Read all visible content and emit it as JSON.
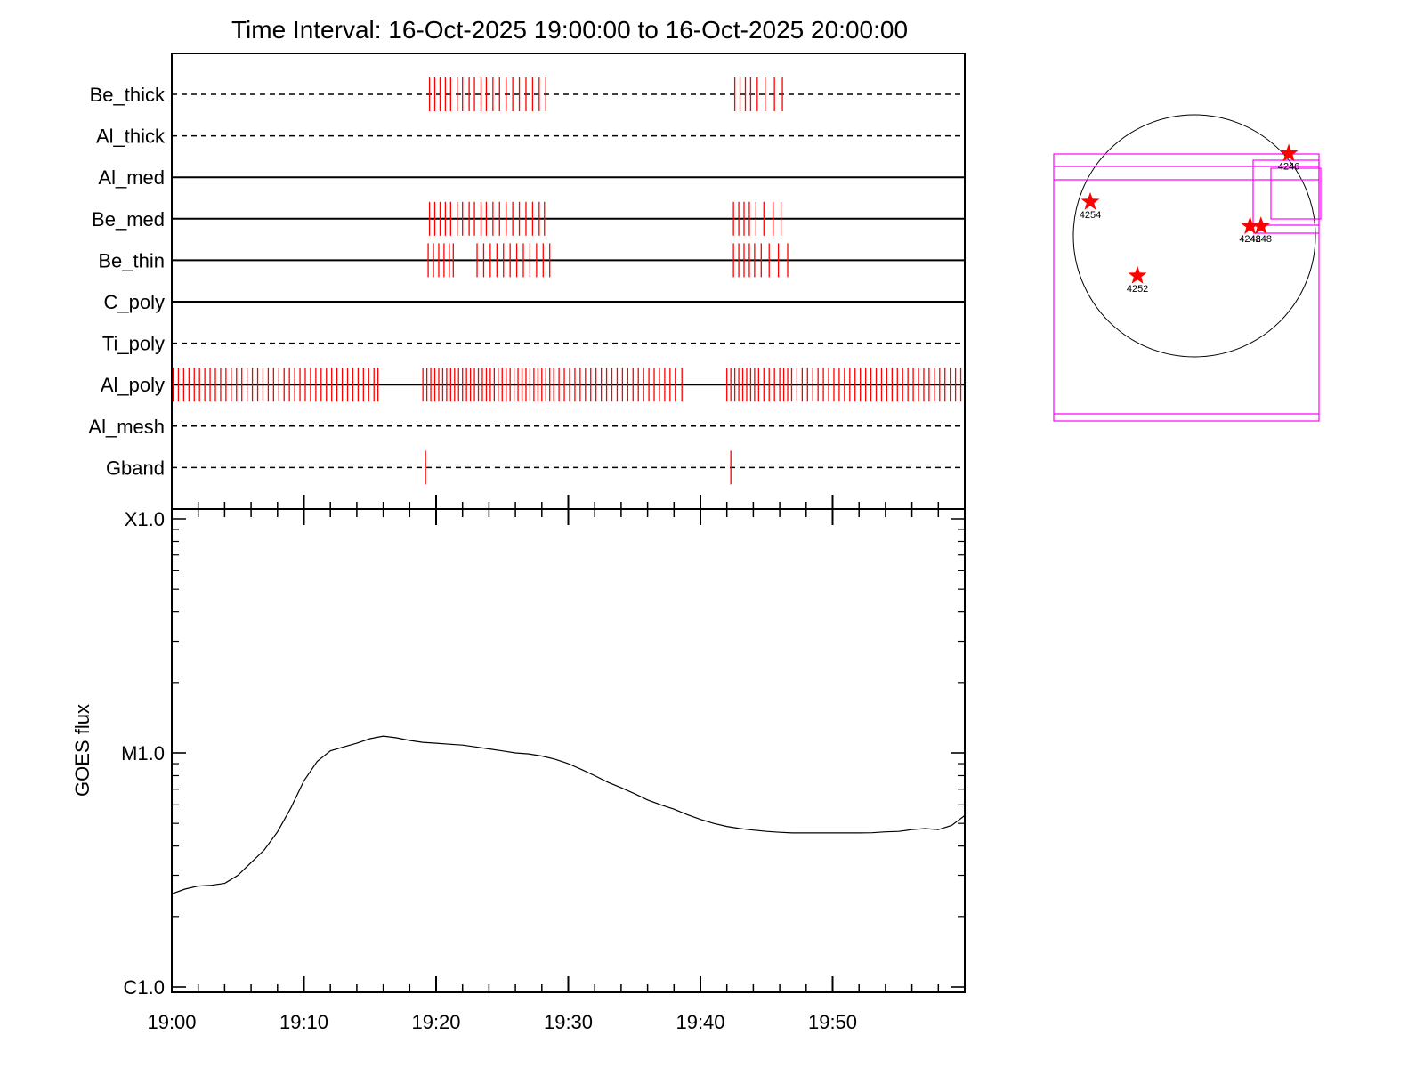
{
  "title": "Time Interval: 16-Oct-2025 19:00:00 to 16-Oct-2025 20:00:00",
  "colors": {
    "marks": "#ff0000",
    "boxes": "#ff00ff",
    "axes": "#000000"
  },
  "chart_data": [
    {
      "type": "timeline",
      "x_range_min": [
        0,
        60
      ],
      "channels": [
        {
          "name": "Be_thick",
          "line": "dashed",
          "events_min": [
            19.5,
            19.9,
            20.3,
            20.7,
            21.1,
            21.6,
            22.0,
            22.5,
            22.9,
            23.4,
            23.8,
            24.3,
            24.8,
            25.3,
            25.8,
            26.3,
            26.8,
            27.3,
            27.8,
            28.3,
            42.6,
            43.0,
            43.4,
            43.8,
            44.3,
            44.9,
            45.6,
            46.2
          ]
        },
        {
          "name": "Al_thick",
          "line": "dashed",
          "events_min": []
        },
        {
          "name": "Al_med",
          "line": "solid",
          "events_min": []
        },
        {
          "name": "Be_med",
          "line": "solid",
          "events_min": [
            19.5,
            19.9,
            20.3,
            20.7,
            21.1,
            21.6,
            22.0,
            22.5,
            22.9,
            23.4,
            23.8,
            24.3,
            24.8,
            25.3,
            25.8,
            26.3,
            26.8,
            27.3,
            27.8,
            28.2,
            42.5,
            42.9,
            43.3,
            43.7,
            44.2,
            44.8,
            45.5,
            46.1
          ]
        },
        {
          "name": "Be_thin",
          "line": "solid",
          "events_min": [
            19.4,
            19.8,
            20.2,
            20.6,
            21.0,
            21.3,
            23.1,
            23.6,
            24.1,
            24.6,
            25.1,
            25.6,
            26.1,
            26.6,
            27.1,
            27.6,
            28.1,
            28.6,
            42.5,
            42.9,
            43.3,
            43.7,
            44.1,
            44.6,
            45.2,
            45.9,
            46.6
          ]
        },
        {
          "name": "C_poly",
          "line": "solid",
          "events_min": []
        },
        {
          "name": "Ti_poly",
          "line": "dashed",
          "events_min": []
        },
        {
          "name": "Al_poly",
          "line": "solid",
          "events_min": [
            0.1,
            0.5,
            0.9,
            1.3,
            1.7,
            2.1,
            2.5,
            2.9,
            3.3,
            3.7,
            4.1,
            4.5,
            4.9,
            5.3,
            5.7,
            6.1,
            6.5,
            6.9,
            7.3,
            7.7,
            8.1,
            8.5,
            8.9,
            9.3,
            9.7,
            10.1,
            10.5,
            10.9,
            11.3,
            11.7,
            12.1,
            12.5,
            12.9,
            13.3,
            13.7,
            14.1,
            14.5,
            14.9,
            15.3,
            15.6,
            19.0,
            19.3,
            19.6,
            19.9,
            20.2,
            20.5,
            20.8,
            21.1,
            21.4,
            21.7,
            22.0,
            22.3,
            22.6,
            22.9,
            23.2,
            23.5,
            23.8,
            24.1,
            24.4,
            24.7,
            25.0,
            25.3,
            25.6,
            25.9,
            26.2,
            26.5,
            26.8,
            27.1,
            27.4,
            27.7,
            28.0,
            28.3,
            28.6,
            28.9,
            29.3,
            29.7,
            30.1,
            30.5,
            30.9,
            31.3,
            31.7,
            32.1,
            32.5,
            32.9,
            33.3,
            33.7,
            34.1,
            34.5,
            34.9,
            35.3,
            35.7,
            36.1,
            36.5,
            36.9,
            37.3,
            37.7,
            38.1,
            38.6,
            42.0,
            42.3,
            42.6,
            42.9,
            43.2,
            43.5,
            43.8,
            44.1,
            44.4,
            44.8,
            45.2,
            45.6,
            46.0,
            46.3,
            46.6,
            46.9,
            47.3,
            47.7,
            48.1,
            48.5,
            48.9,
            49.3,
            49.7,
            50.1,
            50.5,
            50.9,
            51.3,
            51.7,
            52.1,
            52.5,
            52.9,
            53.3,
            53.7,
            54.1,
            54.5,
            54.9,
            55.3,
            55.7,
            56.1,
            56.5,
            56.9,
            57.3,
            57.7,
            58.1,
            58.5,
            58.9,
            59.3,
            59.7
          ]
        },
        {
          "name": "Al_mesh",
          "line": "dashed",
          "events_min": []
        },
        {
          "name": "Gband",
          "line": "dashed",
          "events_min": [
            19.2,
            42.3
          ]
        }
      ]
    },
    {
      "type": "line",
      "ylabel": "GOES flux",
      "y_log": true,
      "ylim": [
        1e-06,
        0.0001
      ],
      "yticks": [
        {
          "label": "C1.0",
          "value": 1e-06
        },
        {
          "label": "M1.0",
          "value": 1e-05
        },
        {
          "label": "X1.0",
          "value": 0.0001
        }
      ],
      "x_range_min": [
        0,
        60
      ],
      "xticks": [
        {
          "label": "19:00",
          "min": 0
        },
        {
          "label": "19:10",
          "min": 10
        },
        {
          "label": "19:20",
          "min": 20
        },
        {
          "label": "19:30",
          "min": 30
        },
        {
          "label": "19:40",
          "min": 40
        },
        {
          "label": "19:50",
          "min": 50
        }
      ],
      "series": [
        {
          "x_min": [
            0,
            1,
            2,
            3,
            4,
            5,
            6,
            7,
            8,
            9,
            10,
            11,
            12,
            13,
            14,
            15,
            16,
            17,
            18,
            19,
            20,
            21,
            22,
            23,
            24,
            25,
            26,
            27,
            28,
            29,
            30,
            31,
            32,
            33,
            34,
            35,
            36,
            37,
            38,
            39,
            40,
            41,
            42,
            43,
            44,
            45,
            46,
            47,
            48,
            49,
            50,
            51,
            52,
            53,
            54,
            55,
            56,
            57,
            58,
            59,
            60
          ],
          "y": [
            2.5e-06,
            2.62e-06,
            2.7e-06,
            2.72e-06,
            2.77e-06,
            3e-06,
            3.4e-06,
            3.85e-06,
            4.6e-06,
            5.8e-06,
            7.6e-06,
            9.2e-06,
            1.02e-05,
            1.06e-05,
            1.1e-05,
            1.15e-05,
            1.18e-05,
            1.16e-05,
            1.13e-05,
            1.11e-05,
            1.1e-05,
            1.09e-05,
            1.08e-05,
            1.06e-05,
            1.04e-05,
            1.02e-05,
            1e-05,
            9.9e-06,
            9.7e-06,
            9.4e-06,
            9e-06,
            8.5e-06,
            8e-06,
            7.5e-06,
            7.1e-06,
            6.7e-06,
            6.3e-06,
            6e-06,
            5.75e-06,
            5.45e-06,
            5.2e-06,
            5e-06,
            4.85e-06,
            4.75e-06,
            4.68e-06,
            4.62e-06,
            4.58e-06,
            4.55e-06,
            4.55e-06,
            4.55e-06,
            4.55e-06,
            4.55e-06,
            4.55e-06,
            4.56e-06,
            4.6e-06,
            4.62e-06,
            4.7e-06,
            4.75e-06,
            4.7e-06,
            4.9e-06,
            5.4e-06
          ]
        }
      ]
    },
    {
      "type": "scatter",
      "panel": "solar-disk",
      "points": [
        {
          "label": "4246",
          "x": 0.78,
          "y": 0.68
        },
        {
          "label": "4254",
          "x": -0.86,
          "y": 0.28
        },
        {
          "label": "4248",
          "x": 0.46,
          "y": 0.08
        },
        {
          "label": "4248",
          "x": 0.55,
          "y": 0.08
        },
        {
          "label": "4252",
          "x": -0.47,
          "y": -0.33
        }
      ]
    }
  ]
}
